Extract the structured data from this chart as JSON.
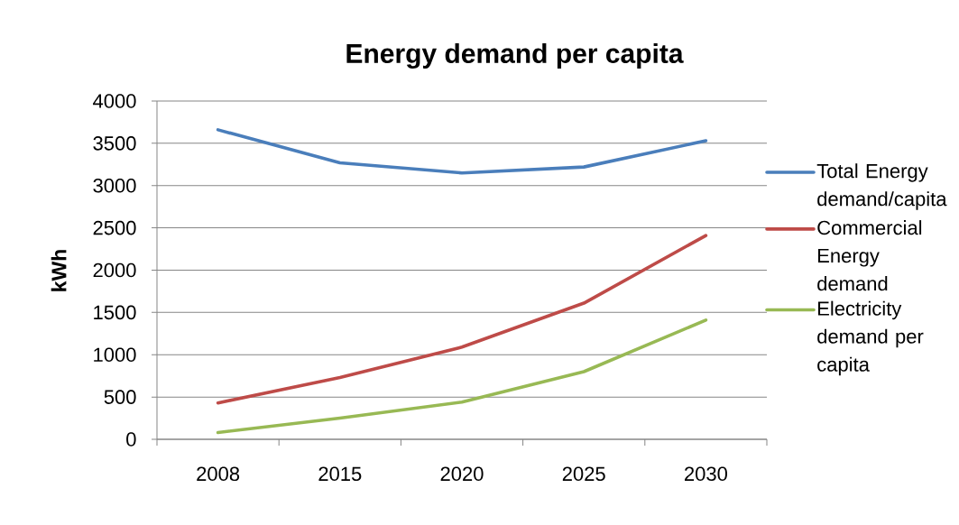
{
  "chart_data": {
    "type": "line",
    "title": "Energy demand per capita",
    "ylabel": "kWh",
    "categories": [
      "2008",
      "2015",
      "2020",
      "2025",
      "2030"
    ],
    "series": [
      {
        "name": "Total Energy demand/capita",
        "color": "#4a7ebb",
        "values": [
          3660,
          3270,
          3150,
          3220,
          3530
        ]
      },
      {
        "name": "Commercial Energy demand",
        "color": "#be4b48",
        "values": [
          430,
          730,
          1090,
          1610,
          2410
        ]
      },
      {
        "name": "Electricity demand per capita",
        "color": "#98b954",
        "values": [
          80,
          250,
          440,
          800,
          1410
        ]
      }
    ],
    "ylim": [
      0,
      4000
    ],
    "yticks": [
      0,
      500,
      1000,
      1500,
      2000,
      2500,
      3000,
      3500,
      4000
    ],
    "grid": "y",
    "legend": "right",
    "line_style": "solid"
  }
}
